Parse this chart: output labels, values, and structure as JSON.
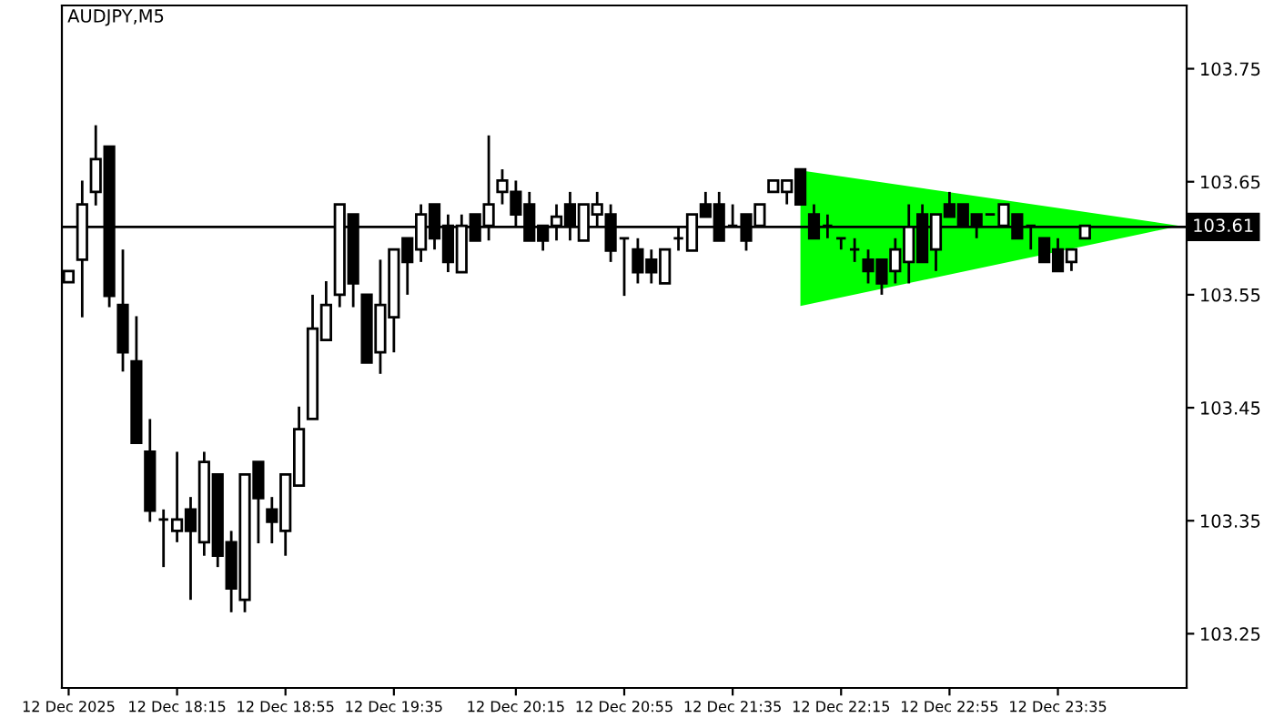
{
  "chart_data": {
    "type": "candlestick",
    "title": "AUDJPY,M5",
    "categories": [
      "12 Dec 2025",
      null,
      null,
      null,
      null,
      null,
      null,
      null,
      "12 Dec 18:15",
      null,
      null,
      null,
      null,
      null,
      null,
      null,
      "12 Dec 18:55",
      null,
      null,
      null,
      null,
      null,
      null,
      null,
      "12 Dec 19:35",
      null,
      null,
      null,
      null,
      null,
      null,
      null,
      null,
      "12 Dec 20:15",
      null,
      null,
      null,
      null,
      null,
      null,
      null,
      "12 Dec 20:55",
      null,
      null,
      null,
      null,
      null,
      null,
      null,
      "12 Dec 21:35",
      null,
      null,
      null,
      null,
      null,
      null,
      null,
      "12 Dec 22:15",
      null,
      null,
      null,
      null,
      null,
      null,
      null,
      "12 Dec 22:55",
      null,
      null,
      null,
      null,
      null,
      null,
      null,
      "12 Dec 23:35",
      null,
      null,
      null,
      null,
      null,
      null,
      null,
      null,
      null
    ],
    "ohlc": [
      [
        103.561,
        103.571,
        103.561,
        103.571
      ],
      [
        103.581,
        103.651,
        103.53,
        103.63
      ],
      [
        103.641,
        103.7,
        103.629,
        103.67
      ],
      [
        103.681,
        103.681,
        103.539,
        103.549
      ],
      [
        103.541,
        103.59,
        103.482,
        103.499
      ],
      [
        103.491,
        103.531,
        103.419,
        103.419
      ],
      [
        103.411,
        103.44,
        103.349,
        103.359
      ],
      [
        103.351,
        103.36,
        103.309,
        103.351
      ],
      [
        103.341,
        103.411,
        103.331,
        103.351
      ],
      [
        103.36,
        103.371,
        103.28,
        103.341
      ],
      [
        103.331,
        103.411,
        103.319,
        103.402
      ],
      [
        103.391,
        103.391,
        103.309,
        103.319
      ],
      [
        103.331,
        103.341,
        103.269,
        103.29
      ],
      [
        103.28,
        103.391,
        103.269,
        103.391
      ],
      [
        103.402,
        103.402,
        103.33,
        103.37
      ],
      [
        103.36,
        103.371,
        103.33,
        103.349
      ],
      [
        103.341,
        103.391,
        103.319,
        103.391
      ],
      [
        103.381,
        103.451,
        103.381,
        103.431
      ],
      [
        103.44,
        103.55,
        103.44,
        103.52
      ],
      [
        103.51,
        103.562,
        103.51,
        103.541
      ],
      [
        103.55,
        103.63,
        103.539,
        103.63
      ],
      [
        103.621,
        103.621,
        103.539,
        103.56
      ],
      [
        103.55,
        103.55,
        103.49,
        103.49
      ],
      [
        103.499,
        103.581,
        103.48,
        103.541
      ],
      [
        103.53,
        103.59,
        103.499,
        103.59
      ],
      [
        103.6,
        103.6,
        103.55,
        103.579
      ],
      [
        103.59,
        103.63,
        103.579,
        103.621
      ],
      [
        103.63,
        103.63,
        103.59,
        103.6
      ],
      [
        103.611,
        103.621,
        103.57,
        103.579
      ],
      [
        103.57,
        103.621,
        103.57,
        103.611
      ],
      [
        103.621,
        103.621,
        103.598,
        103.598
      ],
      [
        103.611,
        103.691,
        103.598,
        103.63
      ],
      [
        103.641,
        103.661,
        103.63,
        103.651
      ],
      [
        103.641,
        103.651,
        103.611,
        103.621
      ],
      [
        103.63,
        103.641,
        103.598,
        103.598
      ],
      [
        103.611,
        103.611,
        103.589,
        103.598
      ],
      [
        103.611,
        103.63,
        103.598,
        103.619
      ],
      [
        103.63,
        103.641,
        103.598,
        103.611
      ],
      [
        103.598,
        103.63,
        103.598,
        103.63
      ],
      [
        103.621,
        103.641,
        103.611,
        103.63
      ],
      [
        103.621,
        103.63,
        103.579,
        103.589
      ],
      [
        103.6,
        103.6,
        103.549,
        103.6
      ],
      [
        103.59,
        103.6,
        103.56,
        103.57
      ],
      [
        103.581,
        103.59,
        103.56,
        103.57
      ],
      [
        103.56,
        103.59,
        103.56,
        103.59
      ],
      [
        103.6,
        103.611,
        103.589,
        103.6
      ],
      [
        103.589,
        103.621,
        103.589,
        103.621
      ],
      [
        103.63,
        103.641,
        103.619,
        103.619
      ],
      [
        103.63,
        103.641,
        103.598,
        103.598
      ],
      [
        103.611,
        103.63,
        103.611,
        103.611
      ],
      [
        103.621,
        103.621,
        103.589,
        103.598
      ],
      [
        103.611,
        103.63,
        103.611,
        103.63
      ],
      [
        103.641,
        103.651,
        103.641,
        103.651
      ],
      [
        103.641,
        103.651,
        103.63,
        103.651
      ],
      [
        103.661,
        103.661,
        103.63,
        103.63
      ],
      [
        103.621,
        103.63,
        103.6,
        103.6
      ],
      [
        103.611,
        103.621,
        103.6,
        103.611
      ],
      [
        103.6,
        103.6,
        103.59,
        103.6
      ],
      [
        103.59,
        103.6,
        103.579,
        103.59
      ],
      [
        103.581,
        103.59,
        103.56,
        103.571
      ],
      [
        103.581,
        103.581,
        103.55,
        103.56
      ],
      [
        103.571,
        103.6,
        103.56,
        103.59
      ],
      [
        103.579,
        103.63,
        103.56,
        103.61
      ],
      [
        103.621,
        103.63,
        103.579,
        103.579
      ],
      [
        103.59,
        103.621,
        103.571,
        103.621
      ],
      [
        103.63,
        103.641,
        103.619,
        103.619
      ],
      [
        103.63,
        103.63,
        103.611,
        103.611
      ],
      [
        103.621,
        103.621,
        103.6,
        103.611
      ],
      [
        103.621,
        103.621,
        103.621,
        103.621
      ],
      [
        103.611,
        103.63,
        103.611,
        103.63
      ],
      [
        103.621,
        103.621,
        103.6,
        103.6
      ],
      [
        103.611,
        103.611,
        103.59,
        103.611
      ],
      [
        103.6,
        103.6,
        103.579,
        103.579
      ],
      [
        103.59,
        103.6,
        103.571,
        103.571
      ],
      [
        103.579,
        103.59,
        103.571,
        103.59
      ],
      [
        103.6,
        103.611,
        103.6,
        103.611
      ],
      null,
      null,
      null,
      null,
      null,
      null,
      null
    ],
    "series": [
      {
        "type": "area",
        "color": "#00ff00",
        "values": [
          null,
          null,
          null,
          null,
          null,
          null,
          null,
          null,
          null,
          null,
          null,
          null,
          null,
          null,
          null,
          null,
          null,
          null,
          null,
          null,
          null,
          null,
          null,
          null,
          null,
          null,
          null,
          null,
          null,
          null,
          null,
          null,
          null,
          null,
          null,
          null,
          null,
          null,
          null,
          null,
          null,
          null,
          null,
          null,
          null,
          null,
          null,
          null,
          null,
          null,
          null,
          null,
          null,
          null,
          null,
          null,
          null,
          null,
          null,
          null,
          null,
          null,
          null,
          null,
          null,
          null,
          null,
          null,
          null,
          null,
          null,
          null,
          null,
          null,
          null,
          null,
          null,
          null,
          null,
          null,
          null,
          null,
          null
        ],
        "lower": [
          null,
          null,
          null,
          null,
          null,
          null,
          null,
          null,
          null,
          null,
          null,
          null,
          null,
          null,
          null,
          null,
          null,
          null,
          null,
          null,
          null,
          null,
          null,
          null,
          null,
          null,
          null,
          null,
          null,
          null,
          null,
          null,
          null,
          null,
          null,
          null,
          null,
          null,
          null,
          null,
          null,
          null,
          null,
          null,
          null,
          null,
          null,
          null,
          null,
          null,
          null,
          null,
          null,
          null,
          103.54,
          null,
          null,
          null,
          null,
          null,
          null,
          null,
          null,
          null,
          null,
          null,
          null,
          null,
          null,
          null,
          null,
          null,
          null,
          null,
          null,
          null,
          null,
          null,
          null,
          null,
          null,
          null,
          103.611
        ],
        "upper": [
          null,
          null,
          null,
          null,
          null,
          null,
          null,
          null,
          null,
          null,
          null,
          null,
          null,
          null,
          null,
          null,
          null,
          null,
          null,
          null,
          null,
          null,
          null,
          null,
          null,
          null,
          null,
          null,
          null,
          null,
          null,
          null,
          null,
          null,
          null,
          null,
          null,
          null,
          null,
          null,
          null,
          null,
          null,
          null,
          null,
          null,
          null,
          null,
          null,
          null,
          null,
          null,
          null,
          null,
          103.66,
          null,
          null,
          null,
          null,
          null,
          null,
          null,
          null,
          null,
          null,
          null,
          null,
          null,
          null,
          null,
          null,
          null,
          null,
          null,
          null,
          null,
          null,
          null,
          null,
          null,
          null,
          null,
          103.611
        ]
      }
    ],
    "ref_lines": [
      {
        "axis": "y",
        "value": 103.61,
        "label": "103.61",
        "color": "#000000"
      }
    ],
    "ylim": [
      103.202,
      103.806
    ],
    "yticks": [
      103.25,
      103.35,
      103.45,
      103.55,
      103.65,
      103.75
    ],
    "grid": false,
    "legend": false
  }
}
